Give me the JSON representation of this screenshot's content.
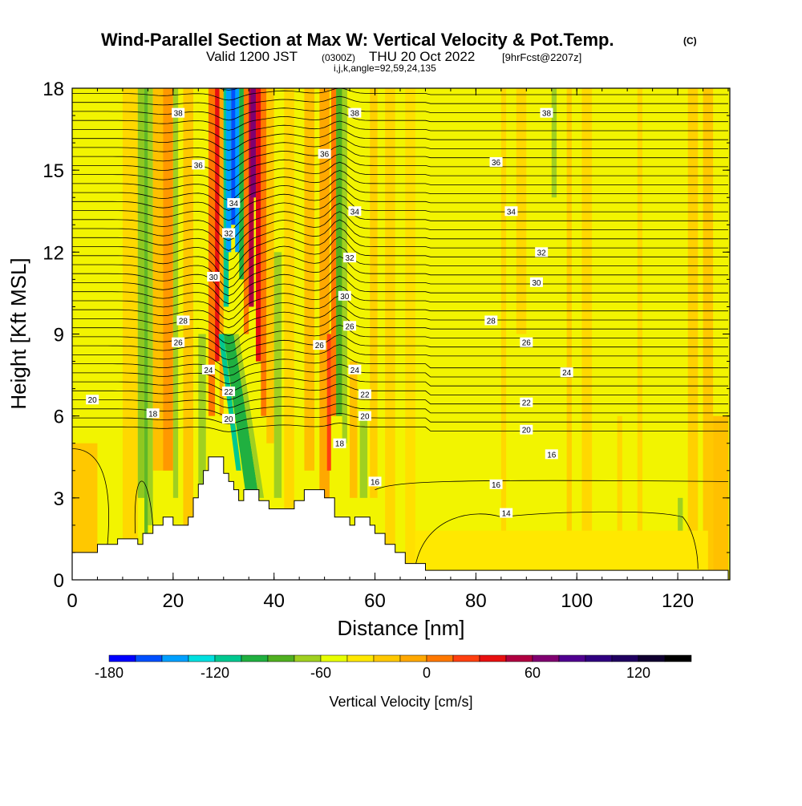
{
  "title": {
    "main": "Wind-Parallel Section at Max W: Vertical Velocity & Pot.Temp.",
    "main_mark": "(C)",
    "valid_a": "Valid 1200 JST",
    "valid_b": "(0300Z)",
    "valid_c": "THU 20 Oct 2022",
    "valid_d": "[9hrFcst@2207z]",
    "ijk": "i,j,k,angle=92,59,24,135"
  },
  "chart_data": {
    "type": "heatmap",
    "xlabel": "Distance [nm]",
    "ylabel": "Height [Kft MSL]",
    "xlim": [
      0,
      130
    ],
    "ylim": [
      0,
      18
    ],
    "x_ticks": [
      "0",
      "20",
      "40",
      "60",
      "80",
      "100",
      "120"
    ],
    "y_ticks": [
      "0",
      "3",
      "6",
      "9",
      "12",
      "15",
      "18"
    ],
    "colorbar": {
      "label": "Vertical Velocity [cm/s]",
      "ticks": [
        "-180",
        "-120",
        "-60",
        "0",
        "60",
        "120"
      ],
      "range": [
        -180,
        150
      ],
      "step": 15,
      "colors": [
        "#0000ff",
        "#0050ff",
        "#00a0ff",
        "#00e0e0",
        "#00c890",
        "#20b040",
        "#50b020",
        "#a0d020",
        "#e8ff00",
        "#ffe800",
        "#ffc800",
        "#ffa800",
        "#ff7800",
        "#ff4010",
        "#e81010",
        "#b00040",
        "#800070",
        "#500090",
        "#300080",
        "#200060",
        "#100030",
        "#000000"
      ]
    },
    "terrain": [
      [
        0,
        1
      ],
      [
        5,
        1
      ],
      [
        5,
        1.3
      ],
      [
        9,
        1.3
      ],
      [
        9,
        1.5
      ],
      [
        13,
        1.5
      ],
      [
        13,
        1.3
      ],
      [
        14,
        1.3
      ],
      [
        14,
        1.7
      ],
      [
        16,
        1.7
      ],
      [
        16,
        2
      ],
      [
        18,
        2
      ],
      [
        18,
        2.3
      ],
      [
        20,
        2.3
      ],
      [
        20,
        2
      ],
      [
        23,
        2
      ],
      [
        23,
        2.3
      ],
      [
        24,
        2.3
      ],
      [
        24,
        3
      ],
      [
        25,
        3
      ],
      [
        25,
        3.5
      ],
      [
        26,
        3.5
      ],
      [
        26,
        4
      ],
      [
        27,
        4
      ],
      [
        27,
        4.5
      ],
      [
        30,
        4.5
      ],
      [
        30,
        3.9
      ],
      [
        31,
        3.9
      ],
      [
        31,
        3.6
      ],
      [
        32,
        3.6
      ],
      [
        32,
        3.3
      ],
      [
        33,
        3.3
      ],
      [
        33,
        2.9
      ],
      [
        34,
        2.9
      ],
      [
        34,
        3.3
      ],
      [
        37,
        3.3
      ],
      [
        37,
        2.9
      ],
      [
        39,
        2.9
      ],
      [
        39,
        2.6
      ],
      [
        44,
        2.6
      ],
      [
        44,
        2.9
      ],
      [
        46,
        2.9
      ],
      [
        46,
        3.3
      ],
      [
        50,
        3.3
      ],
      [
        50,
        3
      ],
      [
        52,
        3
      ],
      [
        52,
        2.3
      ],
      [
        55,
        2.3
      ],
      [
        55,
        2
      ],
      [
        56,
        2
      ],
      [
        56,
        2.3
      ],
      [
        59,
        2.3
      ],
      [
        59,
        2
      ],
      [
        60,
        2
      ],
      [
        60,
        1.7
      ],
      [
        62,
        1.7
      ],
      [
        62,
        1.3
      ],
      [
        64,
        1.3
      ],
      [
        64,
        1
      ],
      [
        66,
        1
      ],
      [
        66,
        0.6
      ],
      [
        70,
        0.6
      ],
      [
        70,
        0.35
      ],
      [
        130,
        0.35
      ]
    ],
    "theta_contours": [
      {
        "label": "14",
        "base": 2.4,
        "labels": [
          [
            86,
            2.45
          ]
        ]
      },
      {
        "label": "16",
        "base": 3.6,
        "labels": [
          [
            60,
            3.6
          ],
          [
            84,
            3.5
          ]
        ]
      },
      {
        "label": "16",
        "base": 4.5,
        "labels": [
          [
            95,
            4.6
          ]
        ]
      },
      {
        "label": "18",
        "base": 5.2,
        "labels": [
          [
            16,
            6.1
          ],
          [
            53,
            5
          ]
        ]
      },
      {
        "label": "20",
        "base": 5.6,
        "labels": [
          [
            4,
            6.6
          ],
          [
            31,
            5.9
          ],
          [
            58,
            6
          ],
          [
            90,
            5.5
          ]
        ]
      },
      {
        "label": "22",
        "base": 6.4,
        "labels": [
          [
            31,
            6.9
          ],
          [
            58,
            6.8
          ],
          [
            90,
            6.5
          ]
        ]
      },
      {
        "label": "24",
        "base": 7.5,
        "labels": [
          [
            27,
            7.7
          ],
          [
            56,
            7.7
          ],
          [
            98,
            7.6
          ]
        ]
      },
      {
        "label": "26",
        "base": 8.6,
        "labels": [
          [
            21,
            8.7
          ],
          [
            49,
            8.6
          ],
          [
            90,
            8.7
          ]
        ]
      },
      {
        "label": "26",
        "base": 9.3,
        "labels": [
          [
            55,
            9.3
          ]
        ]
      },
      {
        "label": "28",
        "base": 9.5,
        "labels": [
          [
            22,
            9.5
          ],
          [
            83,
            9.5
          ]
        ]
      },
      {
        "label": "30",
        "base": 10.8,
        "labels": [
          [
            28,
            11.1
          ],
          [
            54,
            10.4
          ],
          [
            92,
            10.9
          ]
        ]
      },
      {
        "label": "32",
        "base": 12,
        "labels": [
          [
            31,
            12.7
          ],
          [
            55,
            11.8
          ],
          [
            93,
            12
          ]
        ]
      },
      {
        "label": "34",
        "base": 13.5,
        "labels": [
          [
            32,
            13.8
          ],
          [
            56,
            13.5
          ],
          [
            87,
            13.5
          ]
        ]
      },
      {
        "label": "36",
        "base": 15.4,
        "labels": [
          [
            25,
            15.2
          ],
          [
            50,
            15.6
          ],
          [
            84,
            15.3
          ]
        ]
      },
      {
        "label": "38",
        "base": 17.1,
        "labels": [
          [
            21,
            17.1
          ],
          [
            56,
            17.1
          ],
          [
            94,
            17.1
          ]
        ]
      }
    ]
  }
}
